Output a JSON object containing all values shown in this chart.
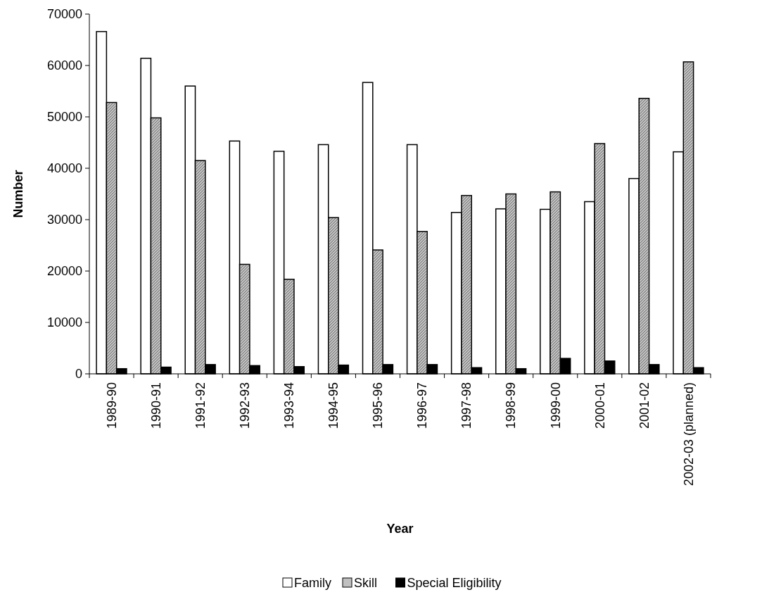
{
  "chart_data": {
    "type": "bar",
    "xlabel": "Year",
    "ylabel": "Number",
    "categories": [
      "1989-90",
      "1990-91",
      "1991-92",
      "1992-93",
      "1993-94",
      "1994-95",
      "1995-96",
      "1996-97",
      "1997-98",
      "1998-99",
      "1999-00",
      "2000-01",
      "2001-02",
      "2002-03 (planned)"
    ],
    "series": [
      {
        "name": "Family",
        "color": "#ffffff",
        "values": [
          66600,
          61400,
          56000,
          45300,
          43300,
          44600,
          56700,
          44600,
          31400,
          32100,
          32000,
          33500,
          38000,
          43200
        ]
      },
      {
        "name": "Skill",
        "color": "#c0c0c0",
        "values": [
          52800,
          49800,
          41500,
          21300,
          18400,
          30400,
          24100,
          27700,
          34700,
          35000,
          35400,
          44800,
          53600,
          60700
        ]
      },
      {
        "name": "Special Eligibility",
        "color": "#000000",
        "values": [
          1000,
          1300,
          1800,
          1600,
          1400,
          1700,
          1800,
          1800,
          1200,
          1000,
          3000,
          2500,
          1800,
          1200
        ]
      }
    ],
    "ylim": [
      0,
      70000
    ],
    "yticks": [
      0,
      10000,
      20000,
      30000,
      40000,
      50000,
      60000,
      70000
    ],
    "grid": false,
    "legend": "bottom"
  }
}
